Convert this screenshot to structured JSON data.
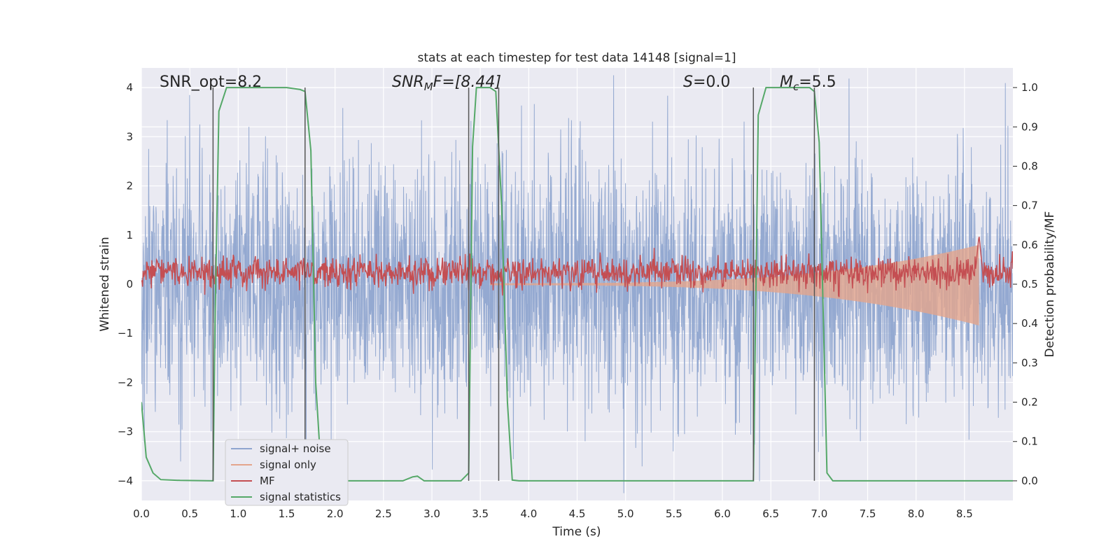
{
  "chart_data": {
    "type": "line",
    "title": "stats at each timestep for test data 14148 [signal=1]",
    "xlabel": "Time (s)",
    "ylabel_left": "Whitened strain",
    "ylabel_right": "Detection probability/MF",
    "xlim": [
      0.0,
      9.0
    ],
    "ylim_left": [
      -4.4,
      4.4
    ],
    "ylim_right": [
      -0.05,
      1.05
    ],
    "xticks": [
      0.0,
      0.5,
      1.0,
      1.5,
      2.0,
      2.5,
      3.0,
      3.5,
      4.0,
      4.5,
      5.0,
      5.5,
      6.0,
      6.5,
      7.0,
      7.5,
      8.0,
      8.5
    ],
    "xtick_labels": [
      "0.0",
      "0.5",
      "1.0",
      "1.5",
      "2.0",
      "2.5",
      "3.0",
      "3.5",
      "4.0",
      "4.5",
      "5.0",
      "5.5",
      "6.0",
      "6.5",
      "7.0",
      "7.5",
      "8.0",
      "8.5"
    ],
    "yticks_left": [
      -4,
      -3,
      -2,
      -1,
      0,
      1,
      2,
      3,
      4
    ],
    "ytick_labels_left": [
      "−4",
      "−3",
      "−2",
      "−1",
      "0",
      "1",
      "2",
      "3",
      "4"
    ],
    "yticks_right": [
      0.0,
      0.1,
      0.2,
      0.3,
      0.4,
      0.5,
      0.6,
      0.7,
      0.8,
      0.9,
      1.0
    ],
    "ytick_labels_right": [
      "0.0",
      "0.1",
      "0.2",
      "0.3",
      "0.4",
      "0.5",
      "0.6",
      "0.7",
      "0.8",
      "0.9",
      "1.0"
    ],
    "annotations": {
      "snr_opt": "SNR_opt=8.2",
      "snr_mf_name": "SNR",
      "snr_mf_sub": "M",
      "snr_mf_rest": "F=[8.44]",
      "s_name": "S",
      "s_value": "=0.0",
      "mc_name": "M",
      "mc_sub": "c",
      "mc_value": "=5.5"
    },
    "vertical_lines_x": [
      0.74,
      1.69,
      3.38,
      3.69,
      6.32,
      6.95
    ],
    "series": [
      {
        "name": "signal+ noise",
        "color": "#8fa5cf",
        "description": "whitened strain, noise-dominated, amplitude mostly within ±3, peaks near ±4"
      },
      {
        "name": "signal only",
        "color": "#e4a58c",
        "chirp": {
          "t_start": 3.6,
          "t_merger": 8.65,
          "amp_start": 0.02,
          "amp_peak": 0.8
        }
      },
      {
        "name": "MF",
        "color": "#c44e52",
        "axis": "right",
        "baseline": 0.53,
        "noise_amp": 0.02,
        "peak": {
          "x": 8.65,
          "y": 0.625
        }
      },
      {
        "name": "signal statistics",
        "color": "#55a868",
        "axis": "right",
        "points": [
          [
            0.0,
            0.2
          ],
          [
            0.05,
            0.06
          ],
          [
            0.12,
            0.02
          ],
          [
            0.2,
            0.003
          ],
          [
            0.4,
            0.001
          ],
          [
            0.74,
            0.0
          ],
          [
            0.76,
            0.4
          ],
          [
            0.8,
            0.94
          ],
          [
            0.88,
            1.0
          ],
          [
            1.5,
            1.0
          ],
          [
            1.64,
            0.995
          ],
          [
            1.69,
            0.99
          ],
          [
            1.75,
            0.84
          ],
          [
            1.8,
            0.25
          ],
          [
            1.86,
            0.01
          ],
          [
            1.95,
            0.0
          ],
          [
            2.7,
            0.0
          ],
          [
            2.8,
            0.01
          ],
          [
            2.85,
            0.012
          ],
          [
            2.92,
            0.0
          ],
          [
            3.3,
            0.0
          ],
          [
            3.38,
            0.02
          ],
          [
            3.42,
            0.85
          ],
          [
            3.46,
            1.0
          ],
          [
            3.6,
            1.0
          ],
          [
            3.66,
            0.99
          ],
          [
            3.72,
            0.7
          ],
          [
            3.78,
            0.2
          ],
          [
            3.83,
            0.002
          ],
          [
            3.9,
            0.0
          ],
          [
            6.32,
            0.0
          ],
          [
            6.37,
            0.93
          ],
          [
            6.45,
            1.0
          ],
          [
            6.9,
            1.0
          ],
          [
            6.95,
            0.99
          ],
          [
            7.0,
            0.86
          ],
          [
            7.08,
            0.02
          ],
          [
            7.14,
            0.0
          ],
          [
            9.0,
            0.0
          ]
        ]
      }
    ],
    "legend": {
      "location": "lower-left",
      "entries": [
        "signal+ noise",
        "signal only",
        "MF",
        "signal statistics"
      ]
    }
  }
}
